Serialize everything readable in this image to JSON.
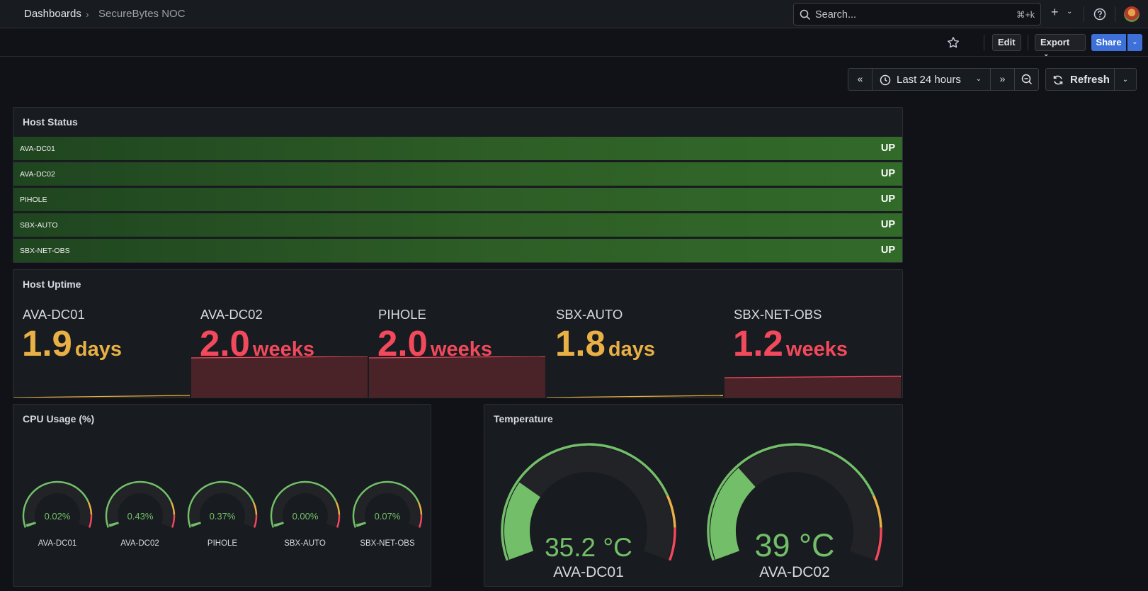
{
  "breadcrumb": {
    "root": "Dashboards",
    "separator": "›",
    "current": "SecureBytes NOC"
  },
  "search": {
    "placeholder": "Search...",
    "shortcut": "⌘+k"
  },
  "toolbar": {
    "edit": "Edit",
    "export": "Export",
    "share": "Share"
  },
  "time_picker": {
    "range": "Last 24 hours",
    "refresh": "Refresh"
  },
  "colors": {
    "ok": "#73bf69",
    "warn": "#e8b045",
    "crit": "#f2495c",
    "status_up_bg": "#2e5e26"
  },
  "host_status": {
    "title": "Host Status",
    "rows": [
      {
        "host": "AVA-DC01",
        "state": "UP"
      },
      {
        "host": "AVA-DC02",
        "state": "UP"
      },
      {
        "host": "PIHOLE",
        "state": "UP"
      },
      {
        "host": "SBX-AUTO",
        "state": "UP"
      },
      {
        "host": "SBX-NET-OBS",
        "state": "UP"
      }
    ]
  },
  "host_uptime": {
    "title": "Host Uptime",
    "items": [
      {
        "host": "AVA-DC01",
        "value": "1.9",
        "unit": "days",
        "color": "#e8b045"
      },
      {
        "host": "AVA-DC02",
        "value": "2.0",
        "unit": "weeks",
        "color": "#f2495c"
      },
      {
        "host": "PIHOLE",
        "value": "2.0",
        "unit": "weeks",
        "color": "#f2495c"
      },
      {
        "host": "SBX-AUTO",
        "value": "1.8",
        "unit": "days",
        "color": "#e8b045"
      },
      {
        "host": "SBX-NET-OBS",
        "value": "1.2",
        "unit": "weeks",
        "color": "#f2495c"
      }
    ]
  },
  "cpu": {
    "title": "CPU Usage (%)",
    "gauges": [
      {
        "host": "AVA-DC01",
        "display": "0.02%",
        "value": 0.02
      },
      {
        "host": "AVA-DC02",
        "display": "0.43%",
        "value": 0.43
      },
      {
        "host": "PIHOLE",
        "display": "0.37%",
        "value": 0.37
      },
      {
        "host": "SBX-AUTO",
        "display": "0.00%",
        "value": 0.0
      },
      {
        "host": "SBX-NET-OBS",
        "display": "0.07%",
        "value": 0.07
      }
    ]
  },
  "temperature": {
    "title": "Temperature",
    "gauges": [
      {
        "host": "AVA-DC01",
        "display": "35.2 °C",
        "fraction": 0.25
      },
      {
        "host": "AVA-DC02",
        "display": "39 °C",
        "fraction": 0.31
      }
    ]
  }
}
